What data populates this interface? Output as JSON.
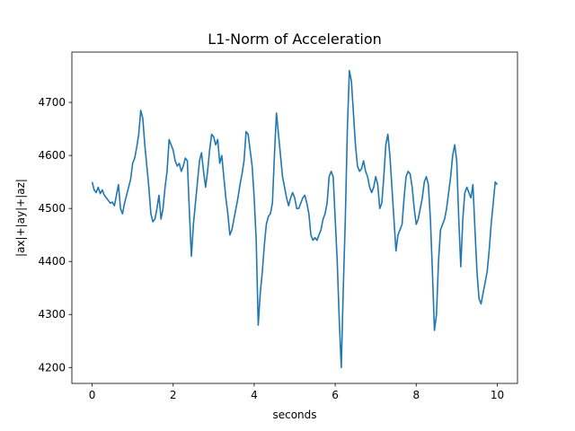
{
  "chart_data": {
    "type": "line",
    "title": "L1-Norm of Acceleration",
    "xlabel": "seconds",
    "ylabel": "|ax|+|ay|+|az|",
    "xlim": [
      -0.5,
      10.5
    ],
    "ylim": [
      4170,
      4795
    ],
    "xticks": [
      0,
      2,
      4,
      6,
      8,
      10
    ],
    "yticks": [
      4200,
      4300,
      4400,
      4500,
      4600,
      4700
    ],
    "grid": false,
    "color": "#1f77b4",
    "series": [
      {
        "x": [
          0.0,
          0.05,
          0.1,
          0.15,
          0.2,
          0.25,
          0.3,
          0.35,
          0.4,
          0.45,
          0.5,
          0.55,
          0.6,
          0.65,
          0.7,
          0.75,
          0.8,
          0.85,
          0.9,
          0.95,
          1.0,
          1.05,
          1.1,
          1.15,
          1.2,
          1.25,
          1.3,
          1.35,
          1.4,
          1.45,
          1.5,
          1.55,
          1.6,
          1.65,
          1.7,
          1.75,
          1.8,
          1.85,
          1.9,
          1.95,
          2.0,
          2.05,
          2.1,
          2.15,
          2.2,
          2.25,
          2.3,
          2.35,
          2.4,
          2.45,
          2.5,
          2.55,
          2.6,
          2.65,
          2.7,
          2.75,
          2.8,
          2.85,
          2.9,
          2.95,
          3.0,
          3.05,
          3.1,
          3.15,
          3.2,
          3.25,
          3.3,
          3.35,
          3.4,
          3.45,
          3.5,
          3.55,
          3.6,
          3.65,
          3.7,
          3.75,
          3.8,
          3.85,
          3.9,
          3.95,
          4.0,
          4.05,
          4.1,
          4.15,
          4.2,
          4.25,
          4.3,
          4.35,
          4.4,
          4.45,
          4.5,
          4.55,
          4.6,
          4.65,
          4.7,
          4.75,
          4.8,
          4.85,
          4.9,
          4.95,
          5.0,
          5.05,
          5.1,
          5.15,
          5.2,
          5.25,
          5.3,
          5.35,
          5.4,
          5.45,
          5.5,
          5.55,
          5.6,
          5.65,
          5.7,
          5.75,
          5.8,
          5.85,
          5.9,
          5.95,
          6.0,
          6.05,
          6.1,
          6.15,
          6.2,
          6.25,
          6.3,
          6.35,
          6.4,
          6.45,
          6.5,
          6.55,
          6.6,
          6.65,
          6.7,
          6.75,
          6.8,
          6.85,
          6.9,
          6.95,
          7.0,
          7.05,
          7.1,
          7.15,
          7.2,
          7.25,
          7.3,
          7.35,
          7.4,
          7.45,
          7.5,
          7.55,
          7.6,
          7.65,
          7.7,
          7.75,
          7.8,
          7.85,
          7.9,
          7.95,
          8.0,
          8.05,
          8.1,
          8.15,
          8.2,
          8.25,
          8.3,
          8.35,
          8.4,
          8.45,
          8.5,
          8.55,
          8.6,
          8.65,
          8.7,
          8.75,
          8.8,
          8.85,
          8.9,
          8.95,
          9.0,
          9.05,
          9.1,
          9.15,
          9.2,
          9.25,
          9.3,
          9.35,
          9.4,
          9.45,
          9.5,
          9.55,
          9.6,
          9.65,
          9.7,
          9.75,
          9.8,
          9.85,
          9.9,
          9.95,
          10.0
        ],
        "values": [
          4550,
          4535,
          4530,
          4540,
          4528,
          4535,
          4525,
          4520,
          4515,
          4510,
          4512,
          4505,
          4525,
          4545,
          4500,
          4490,
          4510,
          4525,
          4540,
          4555,
          4585,
          4595,
          4615,
          4640,
          4685,
          4670,
          4620,
          4580,
          4540,
          4490,
          4475,
          4480,
          4500,
          4525,
          4480,
          4500,
          4540,
          4570,
          4630,
          4620,
          4610,
          4590,
          4580,
          4585,
          4570,
          4580,
          4595,
          4590,
          4495,
          4410,
          4470,
          4510,
          4550,
          4590,
          4605,
          4570,
          4540,
          4570,
          4610,
          4640,
          4635,
          4620,
          4630,
          4585,
          4600,
          4560,
          4520,
          4490,
          4450,
          4460,
          4480,
          4500,
          4520,
          4545,
          4565,
          4590,
          4645,
          4640,
          4610,
          4580,
          4520,
          4440,
          4280,
          4340,
          4380,
          4430,
          4470,
          4485,
          4490,
          4510,
          4600,
          4680,
          4640,
          4600,
          4560,
          4540,
          4520,
          4505,
          4520,
          4530,
          4520,
          4500,
          4500,
          4510,
          4520,
          4525,
          4510,
          4490,
          4450,
          4440,
          4445,
          4440,
          4450,
          4460,
          4480,
          4490,
          4510,
          4560,
          4570,
          4560,
          4480,
          4400,
          4290,
          4200,
          4350,
          4480,
          4650,
          4760,
          4740,
          4680,
          4620,
          4580,
          4570,
          4575,
          4590,
          4570,
          4560,
          4540,
          4530,
          4540,
          4560,
          4545,
          4500,
          4510,
          4560,
          4620,
          4640,
          4600,
          4540,
          4480,
          4420,
          4450,
          4460,
          4470,
          4520,
          4560,
          4570,
          4565,
          4540,
          4500,
          4470,
          4480,
          4500,
          4520,
          4550,
          4560,
          4545,
          4480,
          4380,
          4270,
          4300,
          4400,
          4460,
          4470,
          4480,
          4500,
          4530,
          4560,
          4600,
          4620,
          4590,
          4480,
          4390,
          4480,
          4530,
          4540,
          4530,
          4520,
          4545,
          4460,
          4380,
          4330,
          4320,
          4340,
          4360,
          4380,
          4420,
          4470,
          4510,
          4550,
          4545
        ]
      }
    ]
  }
}
